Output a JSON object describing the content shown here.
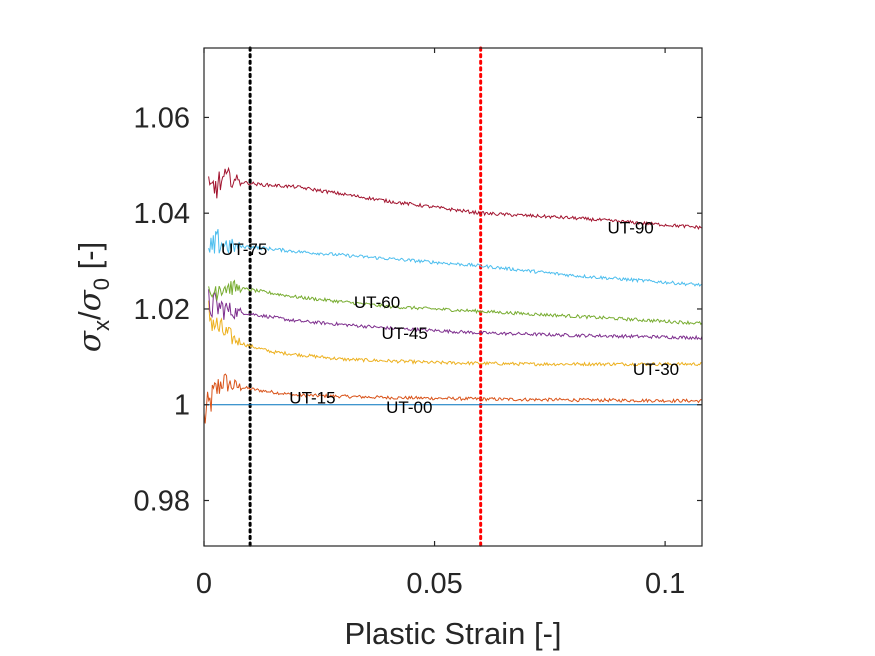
{
  "chart_data": {
    "type": "line",
    "xlabel": "Plastic Strain [-]",
    "ylabel": {
      "base1": "σ",
      "sub1": "x",
      "sep": "/",
      "base2": "σ",
      "sub2": "0",
      "unit": " [-]"
    },
    "xlim": [
      0,
      0.108
    ],
    "ylim": [
      0.9705,
      1.0745
    ],
    "xticks": [
      0,
      0.05,
      0.1
    ],
    "xtick_labels": [
      "0",
      "0.05",
      "0.1"
    ],
    "yticks": [
      0.98,
      1.0,
      1.02,
      1.04,
      1.06
    ],
    "ytick_labels": [
      "0.98",
      "1",
      "1.02",
      "1.04",
      "1.06"
    ],
    "grid": false,
    "vlines": [
      {
        "x": 0.01,
        "color": "#000000",
        "style": "dotted"
      },
      {
        "x": 0.06,
        "color": "#ff0000",
        "style": "dotted"
      }
    ],
    "series": [
      {
        "name": "UT-00",
        "color": "#0072bd",
        "x": [
          0.0,
          0.108
        ],
        "y": [
          1.0,
          1.0
        ],
        "label": {
          "x": 0.0395,
          "y": 0.9995
        }
      },
      {
        "name": "UT-15",
        "color": "#d95319",
        "x": [
          0.0,
          0.002,
          0.004,
          0.006,
          0.009,
          0.012,
          0.02,
          0.04,
          0.06,
          0.08,
          0.108
        ],
        "y": [
          0.997,
          1.002,
          1.005,
          1.004,
          1.0035,
          1.003,
          1.002,
          1.0015,
          1.0012,
          1.001,
          1.0008
        ],
        "label": {
          "x": 0.0185,
          "y": 1.0015
        }
      },
      {
        "name": "UT-30",
        "color": "#edb120",
        "x": [
          0.001,
          0.003,
          0.006,
          0.009,
          0.015,
          0.03,
          0.05,
          0.07,
          0.09,
          0.108
        ],
        "y": [
          1.019,
          1.016,
          1.014,
          1.0125,
          1.011,
          1.0095,
          1.0088,
          1.0085,
          1.0085,
          1.0085
        ],
        "label": {
          "x": 0.093,
          "y": 1.0075
        }
      },
      {
        "name": "UT-45",
        "color": "#7e2f8e",
        "x": [
          0.001,
          0.003,
          0.006,
          0.01,
          0.02,
          0.04,
          0.06,
          0.08,
          0.108
        ],
        "y": [
          1.021,
          1.0205,
          1.0195,
          1.019,
          1.0175,
          1.016,
          1.015,
          1.0145,
          1.014
        ],
        "label": {
          "x": 0.0385,
          "y": 1.015
        }
      },
      {
        "name": "UT-60",
        "color": "#77ac30",
        "x": [
          0.001,
          0.003,
          0.006,
          0.01,
          0.02,
          0.04,
          0.06,
          0.08,
          0.108
        ],
        "y": [
          1.022,
          1.025,
          1.0245,
          1.024,
          1.0225,
          1.0205,
          1.0195,
          1.0185,
          1.017
        ],
        "label": {
          "x": 0.0325,
          "y": 1.0215
        }
      },
      {
        "name": "UT-75",
        "color": "#4dbeee",
        "x": [
          0.001,
          0.003,
          0.006,
          0.01,
          0.02,
          0.04,
          0.06,
          0.08,
          0.108
        ],
        "y": [
          1.031,
          1.034,
          1.033,
          1.033,
          1.032,
          1.0305,
          1.029,
          1.027,
          1.025
        ],
        "label": {
          "x": 0.0037,
          "y": 1.0325
        }
      },
      {
        "name": "UT-90",
        "color": "#a2142f",
        "x": [
          0.001,
          0.003,
          0.005,
          0.008,
          0.012,
          0.02,
          0.04,
          0.06,
          0.08,
          0.108
        ],
        "y": [
          1.044,
          1.046,
          1.0475,
          1.0465,
          1.046,
          1.0455,
          1.0425,
          1.04,
          1.039,
          1.037
        ],
        "label": {
          "x": 0.0875,
          "y": 1.037
        }
      }
    ]
  }
}
